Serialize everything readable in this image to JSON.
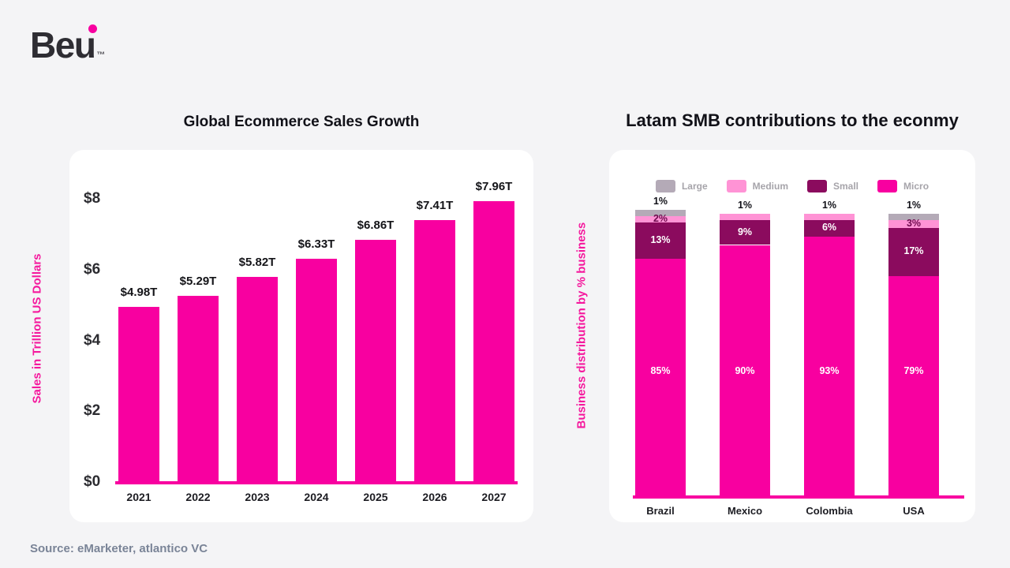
{
  "brand": {
    "name_prefix": "Be",
    "name_u": "u",
    "tm": "™"
  },
  "footer": {
    "source": "Source: eMarketer, atlantico VC"
  },
  "theme": {
    "background": "#f4f4f6",
    "card": "#ffffff",
    "magenta": "#f800a0",
    "axis_pink": "#f5189d",
    "title_dark": "#111118",
    "source_gray": "#7a8497",
    "legend_gray": "#a6a4aa",
    "logo_dark": "#2e2d33"
  },
  "chart_data": [
    {
      "id": "ecommerce",
      "type": "bar",
      "title": "Global Ecommerce Sales Growth",
      "ylabel": "Sales in Trillion US Dollars",
      "categories": [
        "2021",
        "2022",
        "2023",
        "2024",
        "2025",
        "2026",
        "2027"
      ],
      "values": [
        4.98,
        5.29,
        5.82,
        6.33,
        6.86,
        7.41,
        7.96
      ],
      "labels": [
        "$4.98T",
        "$5.29T",
        "$5.82T",
        "$6.33T",
        "$6.86T",
        "$7.41T",
        "$7.96T"
      ],
      "ylim": [
        0,
        8
      ],
      "yticks": [
        {
          "label": "$8",
          "v": 8
        },
        {
          "label": "$6",
          "v": 6
        },
        {
          "label": "$4",
          "v": 4
        },
        {
          "label": "$2",
          "v": 2
        },
        {
          "label": "$0",
          "v": 0
        }
      ],
      "bar_color": "#f800a0",
      "grid": false,
      "legend_position": "none"
    },
    {
      "id": "latam-smb",
      "type": "stacked-bar",
      "title": "Latam SMB contributions to the econmy",
      "ylabel": "Business distribution by % business",
      "categories": [
        "Brazil",
        "Mexico",
        "Colombia",
        "USA"
      ],
      "ylim": [
        0,
        100
      ],
      "grid": false,
      "legend_position": "top",
      "series": [
        {
          "name": "Large",
          "color": "#b4aab7",
          "label_color": "#111118",
          "values": [
            1,
            0,
            0,
            1
          ]
        },
        {
          "name": "Medium",
          "color": "#ff93d5",
          "label_color": "#6e0a4e",
          "values": [
            2,
            1,
            1,
            3
          ]
        },
        {
          "name": "Small",
          "color": "#8b0b5e",
          "label_color": "#ffffff",
          "values": [
            13,
            9,
            6,
            17
          ]
        },
        {
          "name": "Micro",
          "color": "#f800a0",
          "label_color": "#ffffff",
          "values": [
            85,
            90,
            93,
            79
          ]
        }
      ]
    }
  ]
}
